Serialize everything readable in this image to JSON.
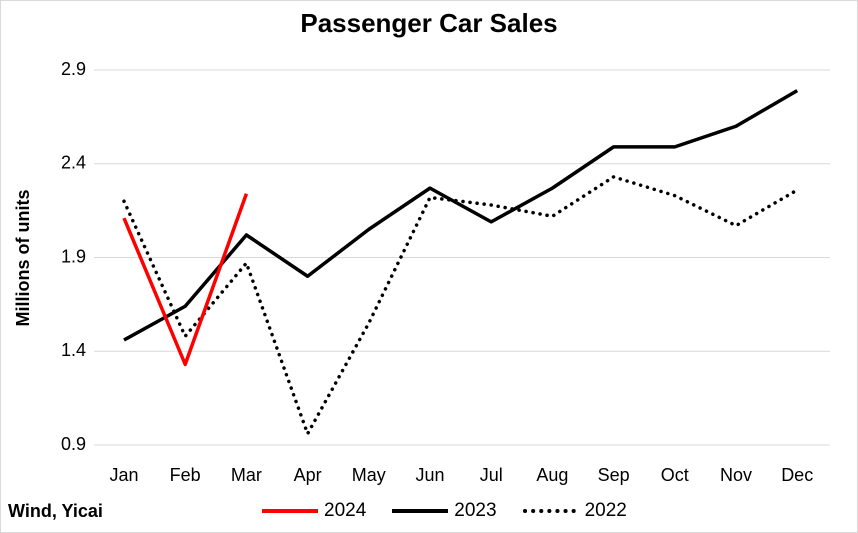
{
  "chart_data": {
    "type": "line",
    "title": "Passenger Car Sales",
    "xlabel": "",
    "ylabel": "Millions of units",
    "categories": [
      "Jan",
      "Feb",
      "Mar",
      "Apr",
      "May",
      "Jun",
      "Jul",
      "Aug",
      "Sep",
      "Oct",
      "Nov",
      "Dec"
    ],
    "yticks": [
      "0.9",
      "1.4",
      "1.9",
      "2.4",
      "2.9"
    ],
    "ylim": [
      0.9,
      2.9
    ],
    "grid": true,
    "legend_position": "bottom",
    "source": "Wind, Yicai",
    "series": [
      {
        "name": "2024",
        "color": "#ff0000",
        "style": "solid",
        "values": [
          2.11,
          1.33,
          2.24,
          null,
          null,
          null,
          null,
          null,
          null,
          null,
          null,
          null
        ]
      },
      {
        "name": "2023",
        "color": "#000000",
        "style": "solid",
        "values": [
          1.46,
          1.64,
          2.02,
          1.8,
          2.05,
          2.27,
          2.09,
          2.27,
          2.49,
          2.49,
          2.6,
          2.79
        ]
      },
      {
        "name": "2022",
        "color": "#000000",
        "style": "dotted",
        "values": [
          2.2,
          1.48,
          1.87,
          0.96,
          1.55,
          2.22,
          2.18,
          2.12,
          2.33,
          2.23,
          2.07,
          2.26
        ]
      }
    ]
  }
}
